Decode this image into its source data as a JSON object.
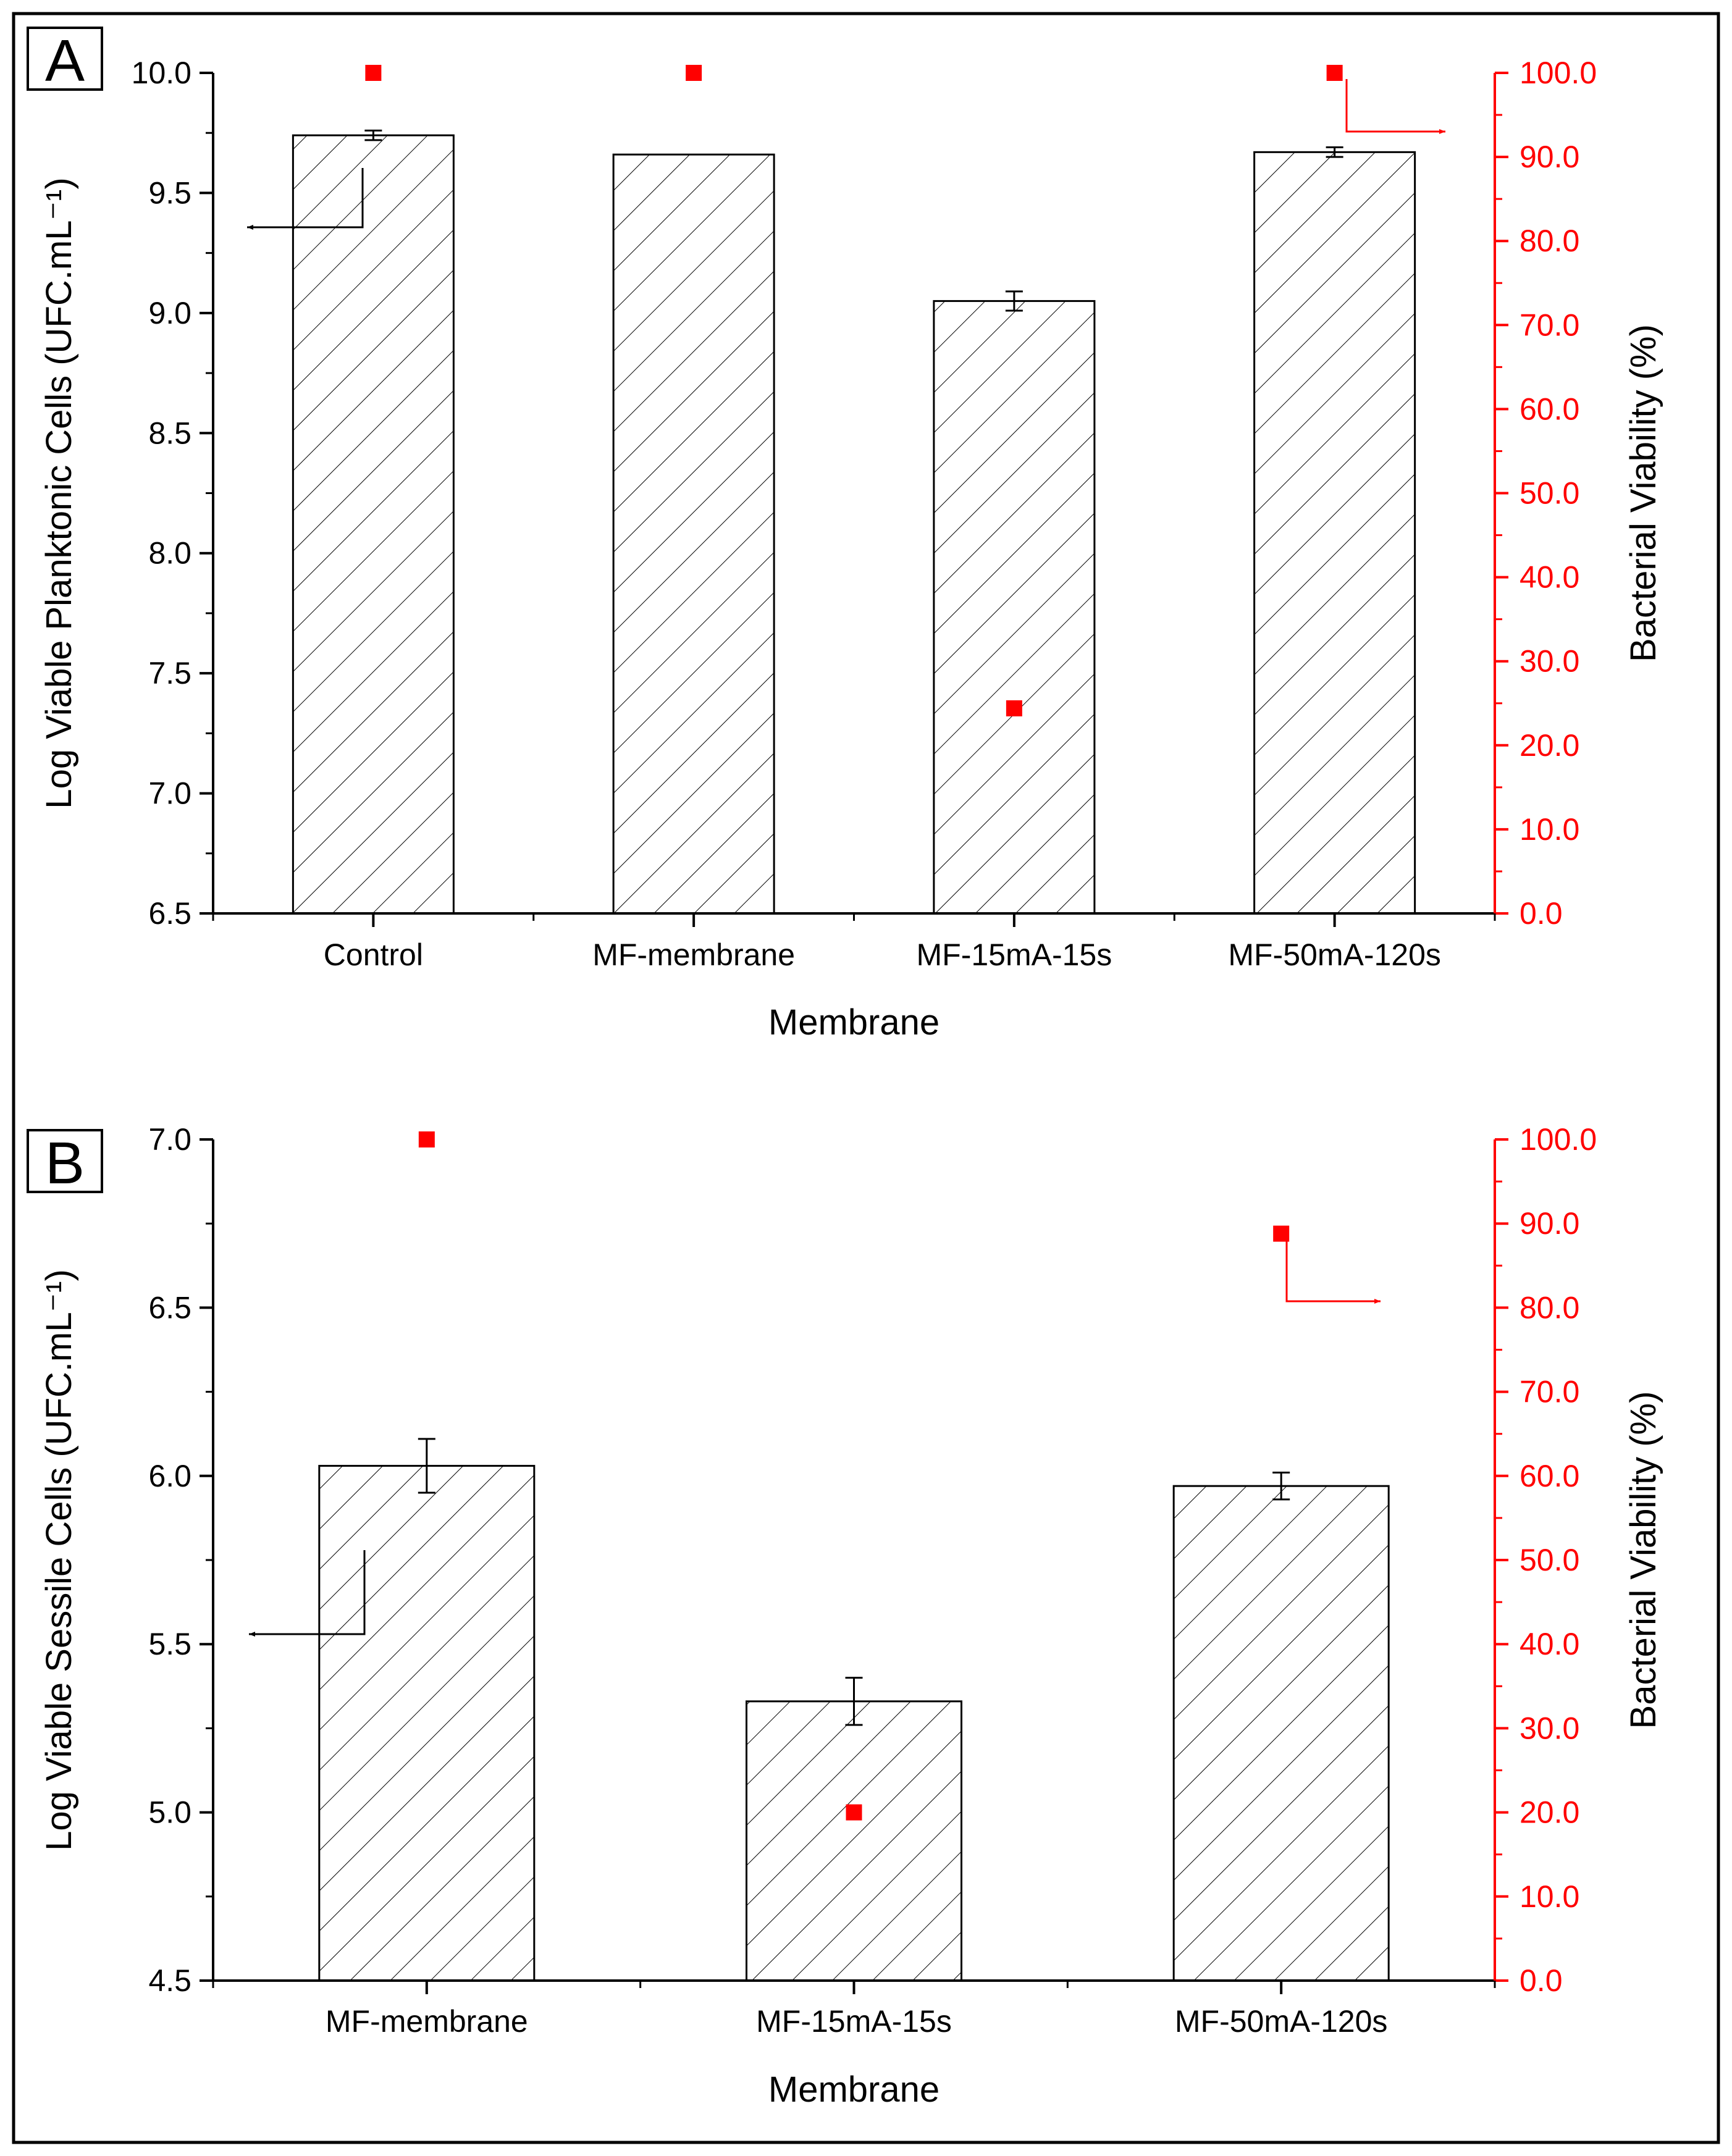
{
  "colors": {
    "axis": "#000000",
    "secondary": "#ff0000",
    "bar_fill": "#ffffff",
    "hatch": "#000000"
  },
  "chart_data": [
    {
      "type": "bar",
      "panel_label": "A",
      "categories": [
        "Control",
        "MF-membrane",
        "MF-15mA-15s",
        "MF-50mA-120s"
      ],
      "series": [
        {
          "name": "Log Viable Planktonic Cells",
          "axis": "left",
          "values": [
            9.74,
            9.66,
            9.05,
            9.67
          ],
          "errors": [
            0.02,
            0.0,
            0.04,
            0.02
          ]
        },
        {
          "name": "Bacterial Viability (%)",
          "axis": "right",
          "type": "scatter",
          "values": [
            100.0,
            100.0,
            24.4,
            100.0
          ]
        }
      ],
      "xlabel": "Membrane",
      "ylabel_left": "Log Viable Planktonic Cells (UFC.mL⁻¹)",
      "ylabel_right": "Bacterial Viability (%)",
      "ylim_left": [
        6.5,
        10.0
      ],
      "yticks_left": [
        "6.5",
        "7.0",
        "7.5",
        "8.0",
        "8.5",
        "9.0",
        "9.5",
        "10.0"
      ],
      "ylim_right": [
        0,
        100
      ],
      "yticks_right": [
        "0.0",
        "10.0",
        "20.0",
        "30.0",
        "40.0",
        "50.0",
        "60.0",
        "70.0",
        "80.0",
        "90.0",
        "100.0"
      ]
    },
    {
      "type": "bar",
      "panel_label": "B",
      "categories": [
        "MF-membrane",
        "MF-15mA-15s",
        "MF-50mA-120s"
      ],
      "series": [
        {
          "name": "Log Viable Sessile Cells",
          "axis": "left",
          "values": [
            6.03,
            5.33,
            5.97
          ],
          "errors": [
            0.08,
            0.07,
            0.04
          ]
        },
        {
          "name": "Bacterial Viability (%)",
          "axis": "right",
          "type": "scatter",
          "values": [
            100.0,
            20.0,
            88.8
          ]
        }
      ],
      "xlabel": "Membrane",
      "ylabel_left": "Log Viable Sessile Cells (UFC.mL⁻¹)",
      "ylabel_right": "Bacterial Viability (%)",
      "ylim_left": [
        4.5,
        7.0
      ],
      "yticks_left": [
        "4.5",
        "5.0",
        "5.5",
        "6.0",
        "6.5",
        "7.0"
      ],
      "ylim_right": [
        0,
        100
      ],
      "yticks_right": [
        "0.0",
        "10.0",
        "20.0",
        "30.0",
        "40.0",
        "50.0",
        "60.0",
        "70.0",
        "80.0",
        "90.0",
        "100.0"
      ]
    }
  ]
}
